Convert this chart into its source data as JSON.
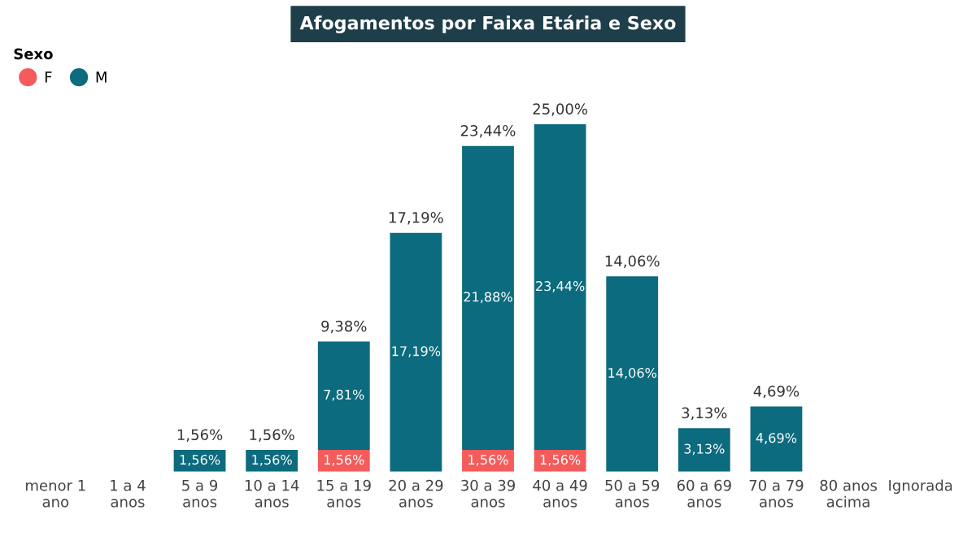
{
  "chart_data": {
    "type": "bar",
    "title": "Afogamentos por Faixa Etária e Sexo",
    "legend_title": "Sexo",
    "stacked": true,
    "legend": "top left",
    "grid": false,
    "categories": [
      "menor 1\nano",
      "1 a 4\nanos",
      "5 a 9\nanos",
      "10 a 14\nanos",
      "15 a 19\nanos",
      "20 a 29\nanos",
      "30 a 39\nanos",
      "40 a 49\nanos",
      "50 a 59\nanos",
      "60 a 69\nanos",
      "70 a 79\nanos",
      "80 anos\nacima",
      "Ignorada"
    ],
    "series": [
      {
        "name": "F",
        "color": "#f45b5b",
        "values": [
          null,
          null,
          null,
          null,
          1.56,
          null,
          1.56,
          1.56,
          null,
          null,
          null,
          null,
          null
        ],
        "value_labels": [
          null,
          null,
          null,
          null,
          "1,56%",
          null,
          "1,56%",
          "1,56%",
          null,
          null,
          null,
          null,
          null
        ]
      },
      {
        "name": "M",
        "color": "#0c6b7e",
        "values": [
          null,
          null,
          1.56,
          1.56,
          7.81,
          17.19,
          21.88,
          23.44,
          14.06,
          3.13,
          4.69,
          null,
          null
        ],
        "value_labels": [
          null,
          null,
          "1,56%",
          "1,56%",
          "7,81%",
          "17,19%",
          "21,88%",
          "23,44%",
          "14,06%",
          "3,13%",
          "4,69%",
          null,
          null
        ]
      }
    ],
    "totals": [
      null,
      null,
      "1,56%",
      "1,56%",
      "9,38%",
      "17,19%",
      "23,44%",
      "25,00%",
      "14,06%",
      "3,13%",
      "4,69%",
      null,
      null
    ]
  }
}
